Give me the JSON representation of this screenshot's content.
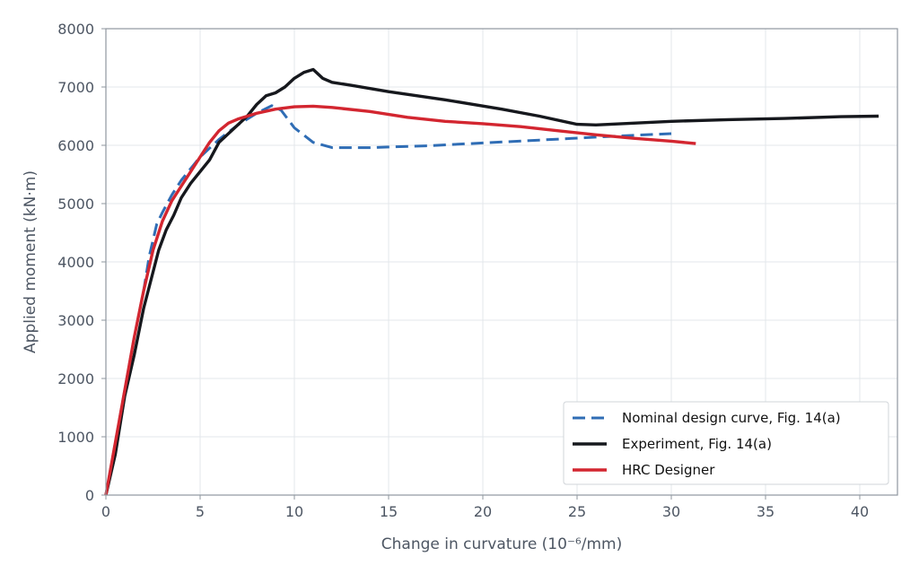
{
  "chart_data": {
    "type": "line",
    "title": "",
    "xlabel": "Change in curvature (10⁻⁶/mm)",
    "ylabel": "Applied moment (kN·m)",
    "xlim": [
      0,
      42
    ],
    "ylim": [
      0,
      8000
    ],
    "xticks": [
      0,
      5,
      10,
      15,
      20,
      25,
      30,
      35,
      40
    ],
    "yticks": [
      0,
      1000,
      2000,
      3000,
      4000,
      5000,
      6000,
      7000,
      8000
    ],
    "grid": true,
    "legend_position": "bottom-right",
    "series": [
      {
        "name": "Nominal design curve, Fig. 14(a)",
        "color": "#2f6db5",
        "style": "dashed",
        "points": [
          [
            0,
            0
          ],
          [
            0.5,
            900
          ],
          [
            1,
            1800
          ],
          [
            1.5,
            2700
          ],
          [
            2,
            3500
          ],
          [
            2.3,
            4100
          ],
          [
            2.7,
            4650
          ],
          [
            3,
            4850
          ],
          [
            3.5,
            5150
          ],
          [
            4,
            5400
          ],
          [
            5,
            5800
          ],
          [
            6,
            6100
          ],
          [
            7,
            6350
          ],
          [
            8,
            6550
          ],
          [
            8.8,
            6680
          ],
          [
            9.3,
            6600
          ],
          [
            10,
            6300
          ],
          [
            11,
            6050
          ],
          [
            12,
            5960
          ],
          [
            14,
            5960
          ],
          [
            17,
            5990
          ],
          [
            20,
            6040
          ],
          [
            23,
            6090
          ],
          [
            26,
            6140
          ],
          [
            28,
            6170
          ],
          [
            30,
            6200
          ]
        ]
      },
      {
        "name": "Experiment, Fig. 14(a)",
        "color": "#16181d",
        "style": "solid",
        "points": [
          [
            0,
            0
          ],
          [
            0.5,
            700
          ],
          [
            0.8,
            1300
          ],
          [
            1,
            1700
          ],
          [
            1.5,
            2400
          ],
          [
            2,
            3200
          ],
          [
            2.4,
            3700
          ],
          [
            2.8,
            4200
          ],
          [
            3.2,
            4550
          ],
          [
            3.6,
            4800
          ],
          [
            4,
            5100
          ],
          [
            4.5,
            5350
          ],
          [
            5,
            5550
          ],
          [
            5.5,
            5750
          ],
          [
            6,
            6050
          ],
          [
            6.5,
            6200
          ],
          [
            7,
            6350
          ],
          [
            7.5,
            6500
          ],
          [
            8,
            6700
          ],
          [
            8.5,
            6850
          ],
          [
            9,
            6900
          ],
          [
            9.5,
            7000
          ],
          [
            10,
            7150
          ],
          [
            10.5,
            7250
          ],
          [
            11,
            7300
          ],
          [
            11.5,
            7150
          ],
          [
            12,
            7080
          ],
          [
            13,
            7030
          ],
          [
            15,
            6920
          ],
          [
            18,
            6780
          ],
          [
            21,
            6620
          ],
          [
            23,
            6500
          ],
          [
            25,
            6360
          ],
          [
            26,
            6350
          ],
          [
            28,
            6380
          ],
          [
            30,
            6410
          ],
          [
            33,
            6440
          ],
          [
            36,
            6460
          ],
          [
            39,
            6490
          ],
          [
            41,
            6500
          ]
        ]
      },
      {
        "name": "HRC Designer",
        "color": "#d32630",
        "style": "solid",
        "points": [
          [
            0,
            0
          ],
          [
            0.5,
            900
          ],
          [
            1,
            1800
          ],
          [
            1.5,
            2700
          ],
          [
            2,
            3500
          ],
          [
            2.5,
            4200
          ],
          [
            3,
            4700
          ],
          [
            3.5,
            5050
          ],
          [
            4,
            5300
          ],
          [
            4.5,
            5550
          ],
          [
            5,
            5800
          ],
          [
            5.5,
            6050
          ],
          [
            6,
            6250
          ],
          [
            6.5,
            6380
          ],
          [
            7,
            6450
          ],
          [
            8,
            6550
          ],
          [
            9,
            6620
          ],
          [
            10,
            6660
          ],
          [
            11,
            6670
          ],
          [
            12,
            6650
          ],
          [
            14,
            6580
          ],
          [
            16,
            6480
          ],
          [
            18,
            6410
          ],
          [
            20,
            6370
          ],
          [
            22,
            6320
          ],
          [
            24,
            6250
          ],
          [
            26,
            6180
          ],
          [
            28,
            6120
          ],
          [
            30,
            6070
          ],
          [
            31.3,
            6030
          ]
        ]
      }
    ]
  }
}
